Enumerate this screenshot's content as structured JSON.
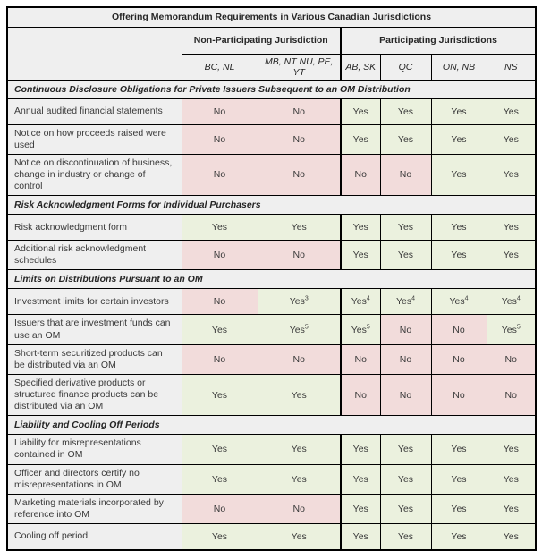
{
  "title": "Offering Memorandum Requirements in Various Canadian Jurisdictions",
  "column_groups": [
    {
      "label": "Non-Participating Jurisdiction",
      "span": 2
    },
    {
      "label": "Participating Jurisdictions",
      "span": 4
    }
  ],
  "columns": [
    "BC, NL",
    "MB, NT NU, PE, YT",
    "AB, SK",
    "QC",
    "ON, NB",
    "NS"
  ],
  "colors": {
    "yes_bg": "#ebf1de",
    "no_bg": "#f2dcdb",
    "header_bg": "#efefef",
    "border": "#000000",
    "text": "#3a3a3a"
  },
  "sections": [
    {
      "heading": "Continuous Disclosure Obligations for Private Issuers Subsequent to an OM Distribution",
      "rows": [
        {
          "label": "Annual audited financial statements",
          "cells": [
            {
              "v": "No"
            },
            {
              "v": "No"
            },
            {
              "v": "Yes"
            },
            {
              "v": "Yes"
            },
            {
              "v": "Yes"
            },
            {
              "v": "Yes"
            }
          ]
        },
        {
          "label": "Notice on how proceeds raised were used",
          "cells": [
            {
              "v": "No"
            },
            {
              "v": "No"
            },
            {
              "v": "Yes"
            },
            {
              "v": "Yes"
            },
            {
              "v": "Yes"
            },
            {
              "v": "Yes"
            }
          ]
        },
        {
          "label": "Notice on discontinuation of business, change in industry or  change of control",
          "cells": [
            {
              "v": "No"
            },
            {
              "v": "No"
            },
            {
              "v": "No"
            },
            {
              "v": "No"
            },
            {
              "v": "Yes"
            },
            {
              "v": "Yes"
            }
          ]
        }
      ]
    },
    {
      "heading": "Risk Acknowledgment Forms for Individual Purchasers",
      "rows": [
        {
          "label": "Risk acknowledgment form",
          "cells": [
            {
              "v": "Yes"
            },
            {
              "v": "Yes"
            },
            {
              "v": "Yes"
            },
            {
              "v": "Yes"
            },
            {
              "v": "Yes"
            },
            {
              "v": "Yes"
            }
          ]
        },
        {
          "label": "Additional risk acknowledgment schedules",
          "cells": [
            {
              "v": "No"
            },
            {
              "v": "No"
            },
            {
              "v": "Yes"
            },
            {
              "v": "Yes"
            },
            {
              "v": "Yes"
            },
            {
              "v": "Yes"
            }
          ]
        }
      ]
    },
    {
      "heading": "Limits on Distributions Pursuant to an OM",
      "rows": [
        {
          "label": "Investment limits for certain investors",
          "cells": [
            {
              "v": "No"
            },
            {
              "v": "Yes",
              "sup": "3"
            },
            {
              "v": "Yes",
              "sup": "4"
            },
            {
              "v": "Yes",
              "sup": "4"
            },
            {
              "v": "Yes",
              "sup": "4"
            },
            {
              "v": "Yes",
              "sup": "4"
            }
          ]
        },
        {
          "label": "Issuers that are investment funds can use an OM",
          "cells": [
            {
              "v": "Yes"
            },
            {
              "v": "Yes",
              "sup": "5"
            },
            {
              "v": "Yes",
              "sup": "5"
            },
            {
              "v": "No"
            },
            {
              "v": "No"
            },
            {
              "v": "Yes",
              "sup": "5"
            }
          ]
        },
        {
          "label": "Short-term securitized products can be distributed via an OM",
          "cells": [
            {
              "v": "No"
            },
            {
              "v": "No"
            },
            {
              "v": "No"
            },
            {
              "v": "No"
            },
            {
              "v": "No"
            },
            {
              "v": "No"
            }
          ]
        },
        {
          "label": "Specified derivative products or structured finance products can be distributed via an OM",
          "cells": [
            {
              "v": "Yes"
            },
            {
              "v": "Yes"
            },
            {
              "v": "No"
            },
            {
              "v": "No"
            },
            {
              "v": "No"
            },
            {
              "v": "No"
            }
          ]
        }
      ]
    },
    {
      "heading": "Liability and Cooling Off Periods",
      "rows": [
        {
          "label": "Liability for misrepresentations contained in OM",
          "cells": [
            {
              "v": "Yes"
            },
            {
              "v": "Yes"
            },
            {
              "v": "Yes"
            },
            {
              "v": "Yes"
            },
            {
              "v": "Yes"
            },
            {
              "v": "Yes"
            }
          ]
        },
        {
          "label": "Officer and directors certify no misrepresentations in OM",
          "cells": [
            {
              "v": "Yes"
            },
            {
              "v": "Yes"
            },
            {
              "v": "Yes"
            },
            {
              "v": "Yes"
            },
            {
              "v": "Yes"
            },
            {
              "v": "Yes"
            }
          ]
        },
        {
          "label": "Marketing materials incorporated by reference into OM",
          "cells": [
            {
              "v": "No"
            },
            {
              "v": "No"
            },
            {
              "v": "Yes"
            },
            {
              "v": "Yes"
            },
            {
              "v": "Yes"
            },
            {
              "v": "Yes"
            }
          ]
        },
        {
          "label": "Cooling off period",
          "cells": [
            {
              "v": "Yes"
            },
            {
              "v": "Yes"
            },
            {
              "v": "Yes"
            },
            {
              "v": "Yes"
            },
            {
              "v": "Yes"
            },
            {
              "v": "Yes"
            }
          ]
        }
      ]
    }
  ]
}
